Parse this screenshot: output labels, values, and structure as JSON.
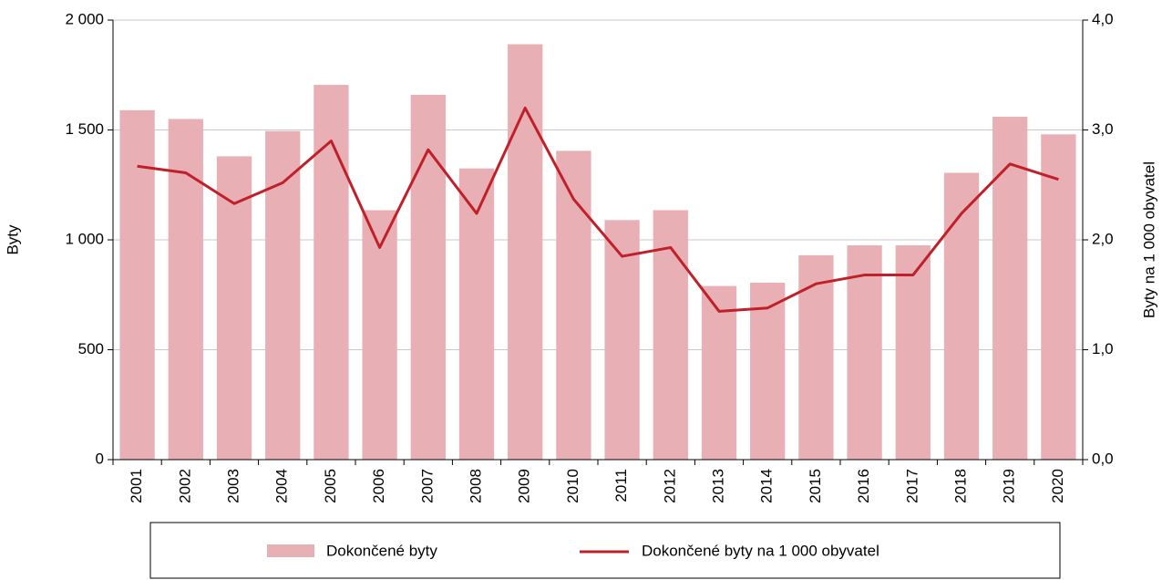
{
  "chart_data": {
    "type": "bar-line",
    "categories": [
      "2001",
      "2002",
      "2003",
      "2004",
      "2005",
      "2006",
      "2007",
      "2008",
      "2009",
      "2010",
      "2011",
      "2012",
      "2013",
      "2014",
      "2015",
      "2016",
      "2017",
      "2018",
      "2019",
      "2020"
    ],
    "series": [
      {
        "name": "Dokončené byty",
        "type": "bar",
        "color": "#e8b0b4",
        "values": [
          1590,
          1550,
          1380,
          1495,
          1705,
          1135,
          1660,
          1325,
          1890,
          1405,
          1090,
          1135,
          790,
          805,
          930,
          975,
          975,
          1305,
          1560,
          1480
        ]
      },
      {
        "name": "Dokončené byty na 1 000 obyvatel",
        "type": "line",
        "axis": "y2",
        "color": "#c0202a",
        "values": [
          2.67,
          2.61,
          2.33,
          2.52,
          2.9,
          1.93,
          2.82,
          2.24,
          3.2,
          2.37,
          1.85,
          1.93,
          1.35,
          1.38,
          1.6,
          1.68,
          1.68,
          2.24,
          2.69,
          2.55
        ]
      }
    ],
    "y_label": "Byty",
    "y2_label": "Byty na 1 000 obyvatel",
    "ylim": [
      0,
      2000
    ],
    "yticks": [
      0,
      500,
      {
        "value": 1000,
        "label": "1 000"
      },
      {
        "value": 1500,
        "label": "1 500"
      },
      {
        "value": 2000,
        "label": "2 000"
      }
    ],
    "y2lim": [
      0,
      4
    ],
    "y2ticks": [
      {
        "value": 0,
        "label": "0,0"
      },
      {
        "value": 1,
        "label": "1,0"
      },
      {
        "value": 2,
        "label": "2,0"
      },
      {
        "value": 3,
        "label": "3,0"
      },
      {
        "value": 4,
        "label": "4,0"
      }
    ],
    "grid": true,
    "legend": "bottom"
  }
}
